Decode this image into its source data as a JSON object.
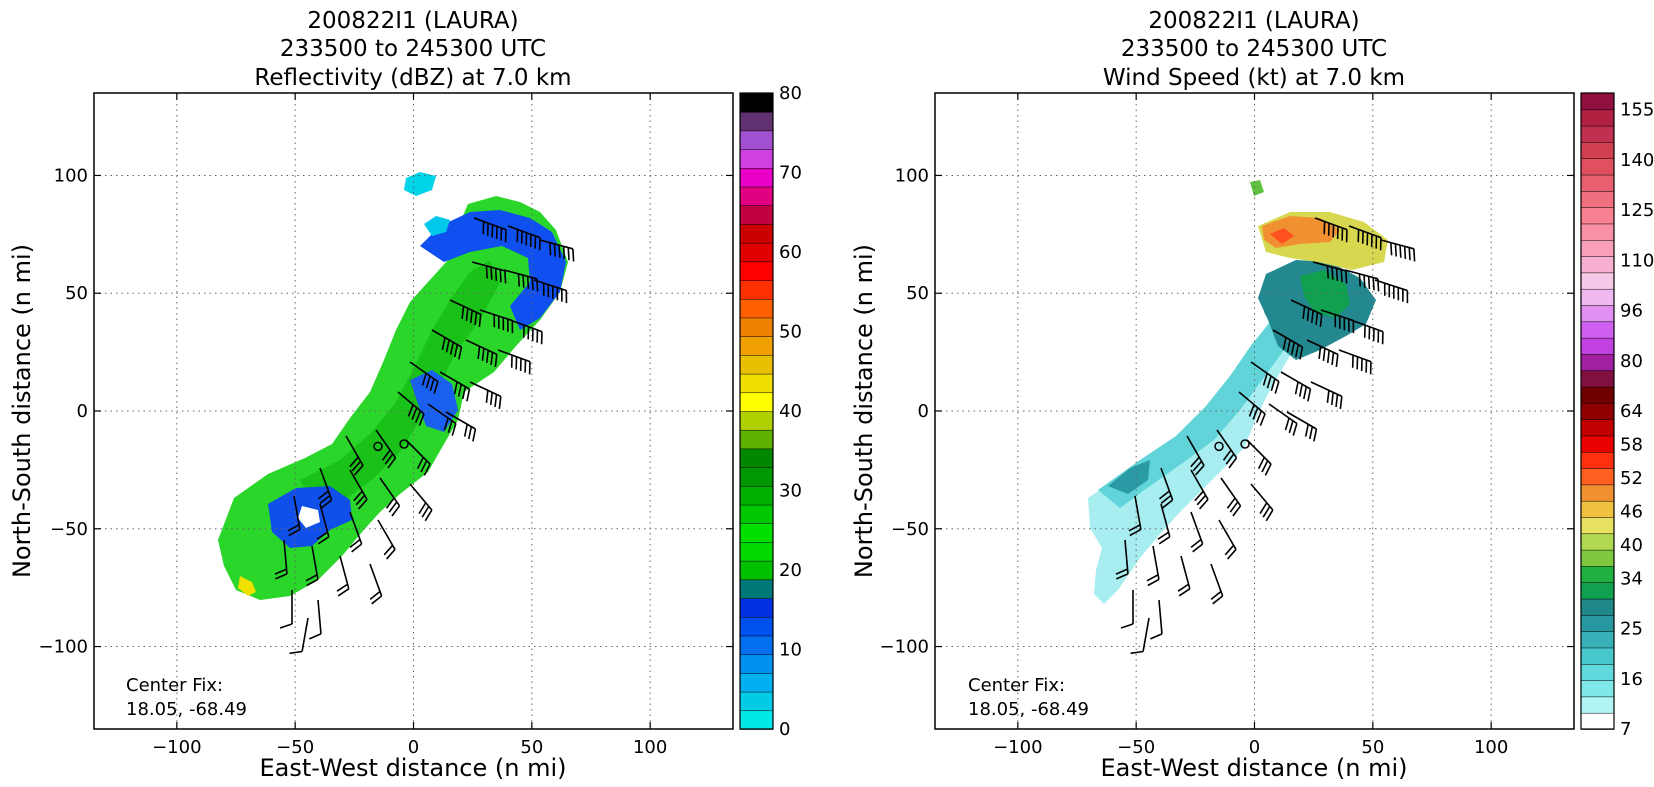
{
  "chart_data": [
    {
      "type": "heatmap",
      "title_lines": [
        "200822I1 (LAURA)",
        "233500 to 245300 UTC",
        "Reflectivity (dBZ) at 7.0 km"
      ],
      "xlabel": "East-West distance (n mi)",
      "ylabel": "North-South distance (n mi)",
      "xlim": [
        -135,
        135
      ],
      "ylim": [
        -135,
        135
      ],
      "xticks": [
        -100,
        -50,
        0,
        50,
        100
      ],
      "yticks": [
        -100,
        -50,
        0,
        50,
        100
      ],
      "xtick_labels": [
        "−100",
        "−50",
        "0",
        "50",
        "100"
      ],
      "ytick_labels": [
        "−100",
        "−50",
        "0",
        "50",
        "100"
      ],
      "grid": true,
      "annotation_lines": [
        "Center Fix:",
        "18.05, -68.49"
      ],
      "center_points": [
        [
          -15,
          -15
        ],
        [
          -4,
          -14
        ]
      ],
      "colorbar": {
        "levels": [
          0,
          2.5,
          5,
          7.5,
          10,
          12.5,
          15,
          17.5,
          20,
          22.5,
          25,
          27.5,
          30,
          32.5,
          35,
          37.5,
          40,
          42.5,
          45,
          47.5,
          50,
          52.5,
          55,
          57.5,
          60,
          62.5,
          65,
          67.5,
          70,
          72.5,
          75,
          77.5,
          80
        ],
        "colors": [
          "#00e8e8",
          "#00cce6",
          "#00b0f0",
          "#0090f0",
          "#0070f0",
          "#0050f0",
          "#0030e0",
          "#007878",
          "#00c000",
          "#00d800",
          "#00e000",
          "#00c800",
          "#00b000",
          "#009800",
          "#008800",
          "#60b000",
          "#b0d000",
          "#ffff00",
          "#f0e000",
          "#e8c000",
          "#f0a000",
          "#f08000",
          "#ff6000",
          "#ff3000",
          "#ff0000",
          "#e00000",
          "#cc0000",
          "#c00040",
          "#e00080",
          "#e800c8",
          "#d040e0",
          "#a050d0",
          "#603070",
          "#000000"
        ],
        "tick_values": [
          0,
          10,
          20,
          30,
          40,
          50,
          60,
          70,
          80
        ],
        "tick_labels": [
          "0",
          "10",
          "20",
          "30",
          "40",
          "50",
          "60",
          "70",
          "80"
        ]
      }
    },
    {
      "type": "heatmap",
      "title_lines": [
        "200822I1 (LAURA)",
        "233500 to 245300 UTC",
        "Wind Speed (kt) at 7.0 km"
      ],
      "xlabel": "East-West distance (n mi)",
      "ylabel": "North-South distance (n mi)",
      "xlim": [
        -135,
        135
      ],
      "ylim": [
        -135,
        135
      ],
      "xticks": [
        -100,
        -50,
        0,
        50,
        100
      ],
      "yticks": [
        -100,
        -50,
        0,
        50,
        100
      ],
      "xtick_labels": [
        "−100",
        "−50",
        "0",
        "50",
        "100"
      ],
      "ytick_labels": [
        "−100",
        "−50",
        "0",
        "50",
        "100"
      ],
      "grid": true,
      "annotation_lines": [
        "Center Fix:",
        "18.05, -68.49"
      ],
      "center_points": [
        [
          -15,
          -15
        ],
        [
          -4,
          -14
        ]
      ],
      "colorbar": {
        "levels": [
          7,
          10,
          13,
          16,
          19,
          22,
          25,
          28,
          31,
          34,
          37,
          40,
          43,
          46,
          49,
          52,
          55,
          58,
          61,
          64,
          69,
          74,
          80,
          85,
          90,
          96,
          101,
          106,
          110,
          115,
          120,
          125,
          130,
          135,
          140,
          145,
          150,
          155,
          160
        ],
        "colors": [
          "#ffffff",
          "#b0f4f4",
          "#80e8e8",
          "#60d8dc",
          "#48c8cc",
          "#38b0b8",
          "#2898a0",
          "#208888",
          "#10a050",
          "#20b040",
          "#80c840",
          "#b0d850",
          "#e8e060",
          "#f0c040",
          "#f09030",
          "#ff6020",
          "#ff3010",
          "#e80000",
          "#c00000",
          "#900000",
          "#700000",
          "#801040",
          "#a020a0",
          "#c040e0",
          "#d060f0",
          "#e090f0",
          "#f0b8f0",
          "#f8c8e8",
          "#f8b0d0",
          "#f8a0b8",
          "#f890a8",
          "#f88090",
          "#f07080",
          "#e86070",
          "#e05060",
          "#d04050",
          "#c03050",
          "#b02040",
          "#901040"
        ],
        "tick_values": [
          7,
          16,
          25,
          34,
          40,
          46,
          52,
          58,
          64,
          80,
          96,
          110,
          125,
          140,
          155
        ],
        "tick_labels": [
          "7",
          "16",
          "25",
          "34",
          "40",
          "46",
          "52",
          "58",
          "64",
          "80",
          "96",
          "110",
          "125",
          "140",
          "155"
        ]
      }
    }
  ]
}
